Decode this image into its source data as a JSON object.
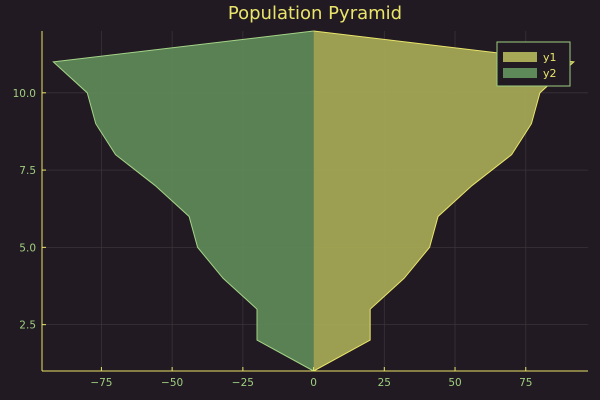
{
  "chart_data": {
    "type": "area",
    "title": "Population Pyramid",
    "xlabel": "",
    "ylabel": "",
    "xlim": [
      -96,
      97
    ],
    "ylim": [
      1,
      12
    ],
    "xticks": [
      -75,
      -50,
      -25,
      0,
      25,
      50,
      75
    ],
    "xtick_labels": [
      "−75",
      "−50",
      "−25",
      "0",
      "25",
      "50",
      "75"
    ],
    "yticks": [
      2.5,
      5.0,
      7.5,
      10.0
    ],
    "ytick_labels": [
      "2.5",
      "5.0",
      "7.5",
      "10.0"
    ],
    "grid": true,
    "legend_position": "top-right",
    "series": [
      {
        "name": "y1",
        "color": "#a7a956",
        "line_color": "#e9e46b",
        "points": [
          [
            0,
            1
          ],
          [
            20,
            2
          ],
          [
            20,
            3
          ],
          [
            32,
            4
          ],
          [
            41,
            5
          ],
          [
            44,
            6
          ],
          [
            56,
            7
          ],
          [
            70,
            8
          ],
          [
            77,
            9
          ],
          [
            80,
            10
          ],
          [
            92,
            11
          ],
          [
            0,
            12
          ]
        ]
      },
      {
        "name": "y2",
        "color": "#5e8a59",
        "line_color": "#a5d387",
        "points": [
          [
            0,
            1
          ],
          [
            -20,
            2
          ],
          [
            -20,
            3
          ],
          [
            -32,
            4
          ],
          [
            -41,
            5
          ],
          [
            -44,
            6
          ],
          [
            -56,
            7
          ],
          [
            -70,
            8
          ],
          [
            -77,
            9
          ],
          [
            -80,
            10
          ],
          [
            -92,
            11
          ],
          [
            0,
            12
          ]
        ]
      }
    ],
    "colors": {
      "background": "#211a22",
      "text": "#e9e46b",
      "tick_text": "#9fcf80",
      "axis": "#e9e46b",
      "grid": "#3a3339"
    }
  }
}
